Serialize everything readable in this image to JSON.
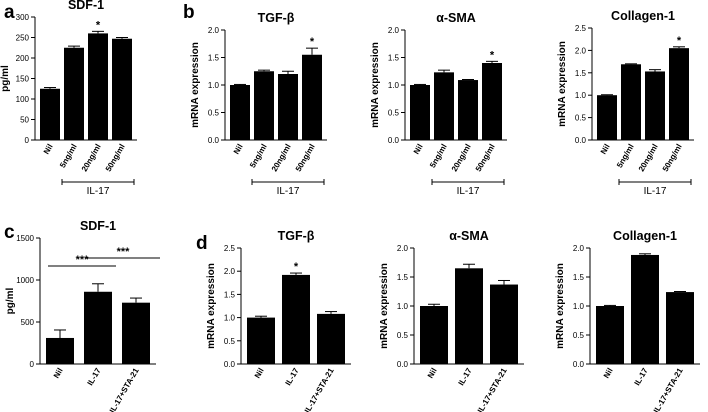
{
  "chart_data": [
    {
      "id": "a1",
      "panel": "a",
      "type": "bar",
      "title": "SDF-1",
      "ylabel": "pg/ml",
      "categories": [
        "Nil",
        "5ng/ml",
        "20ng/ml",
        "50ng/ml"
      ],
      "values": [
        125,
        225,
        260,
        247
      ],
      "errors": [
        3,
        4,
        5,
        3
      ],
      "ylim": [
        0,
        300
      ],
      "yticks": [
        "0",
        "50",
        "100",
        "150",
        "200",
        "250",
        "300"
      ],
      "annotations": [
        "",
        "",
        "*",
        ""
      ],
      "group_label": "IL-17"
    },
    {
      "id": "b1",
      "panel": "b",
      "type": "bar",
      "title": "TGF-β",
      "ylabel": "mRNA expression",
      "categories": [
        "Nil",
        "5ng/ml",
        "20ng/ml",
        "50ng/ml"
      ],
      "values": [
        1.0,
        1.25,
        1.2,
        1.55
      ],
      "errors": [
        0.01,
        0.02,
        0.05,
        0.12
      ],
      "ylim": [
        0,
        2.0
      ],
      "yticks": [
        "0.0",
        "0.5",
        "1.0",
        "1.5",
        "2.0"
      ],
      "annotations": [
        "",
        "",
        "",
        "*"
      ],
      "group_label": "IL-17"
    },
    {
      "id": "b2",
      "panel": "",
      "type": "bar",
      "title": "α-SMA",
      "ylabel": "mRNA expression",
      "categories": [
        "Nil",
        "5ng/ml",
        "20ng/ml",
        "50ng/ml"
      ],
      "values": [
        1.0,
        1.23,
        1.09,
        1.4
      ],
      "errors": [
        0.01,
        0.04,
        0.01,
        0.03
      ],
      "ylim": [
        0,
        2.0
      ],
      "yticks": [
        "0.0",
        "0.5",
        "1.0",
        "1.5",
        "2.0"
      ],
      "annotations": [
        "",
        "",
        "",
        "*"
      ],
      "group_label": "IL-17"
    },
    {
      "id": "b3",
      "panel": "",
      "type": "bar",
      "title": "Collagen-1",
      "ylabel": "mRNA expression",
      "categories": [
        "Nil",
        "5ng/ml",
        "20ng/ml",
        "50ng/ml"
      ],
      "values": [
        1.0,
        1.69,
        1.53,
        2.05
      ],
      "errors": [
        0.01,
        0.01,
        0.04,
        0.03
      ],
      "ylim": [
        0,
        2.5
      ],
      "yticks": [
        "0.0",
        "0.5",
        "1.0",
        "1.5",
        "2.0",
        "2.5"
      ],
      "annotations": [
        "",
        "",
        "",
        "*"
      ],
      "group_label": "IL-17"
    },
    {
      "id": "c1",
      "panel": "c",
      "type": "bar",
      "title": "SDF-1",
      "ylabel": "pg/ml",
      "categories": [
        "Nil",
        "IL-17",
        "IL-17+STA-21"
      ],
      "values": [
        310,
        860,
        730
      ],
      "errors": [
        95,
        95,
        55
      ],
      "ylim": [
        0,
        1500
      ],
      "yticks": [
        "0",
        "500",
        "1000",
        "1500"
      ],
      "annotations": [
        "",
        "",
        ""
      ],
      "group_label": "",
      "significance": [
        {
          "from": 0,
          "to": 1,
          "label": "***"
        },
        {
          "from": 1,
          "to": 2,
          "label": "***"
        }
      ]
    },
    {
      "id": "d1",
      "panel": "d",
      "type": "bar",
      "title": "TGF-β",
      "ylabel": "mRNA expression",
      "categories": [
        "Nil",
        "IL-17",
        "IL-17+STA-21"
      ],
      "values": [
        1.0,
        1.92,
        1.08
      ],
      "errors": [
        0.03,
        0.04,
        0.05
      ],
      "ylim": [
        0,
        2.5
      ],
      "yticks": [
        "0.0",
        "0.5",
        "1.0",
        "1.5",
        "2.0",
        "2.5"
      ],
      "annotations": [
        "",
        "*",
        ""
      ],
      "group_label": ""
    },
    {
      "id": "d2",
      "panel": "",
      "type": "bar",
      "title": "α-SMA",
      "ylabel": "mRNA expression",
      "categories": [
        "Nil",
        "IL-17",
        "IL-17+STA-21"
      ],
      "values": [
        1.0,
        1.65,
        1.37
      ],
      "errors": [
        0.03,
        0.07,
        0.07
      ],
      "ylim": [
        0,
        2.0
      ],
      "yticks": [
        "0.0",
        "0.5",
        "1.0",
        "1.5",
        "2.0"
      ],
      "annotations": [
        "",
        "",
        ""
      ],
      "group_label": ""
    },
    {
      "id": "d3",
      "panel": "",
      "type": "bar",
      "title": "Collagen-1",
      "ylabel": "mRNA expression",
      "categories": [
        "Nil",
        "IL-17",
        "IL-17+STA-21"
      ],
      "values": [
        1.0,
        1.88,
        1.24
      ],
      "errors": [
        0.01,
        0.02,
        0.01
      ],
      "ylim": [
        0,
        2.0
      ],
      "yticks": [
        "0.0",
        "0.5",
        "1.0",
        "1.5",
        "2.0"
      ],
      "annotations": [
        "",
        "",
        ""
      ],
      "group_label": ""
    }
  ]
}
